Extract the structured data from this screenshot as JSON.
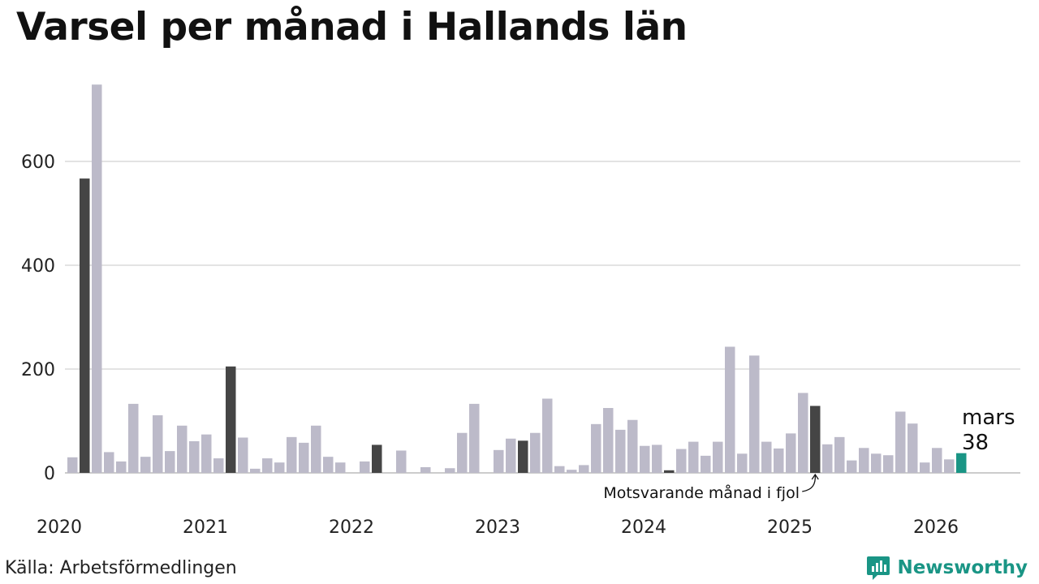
{
  "title": "Varsel per månad i Hallands län",
  "source": "Källa: Arbetsförmedlingen",
  "brand": {
    "name": "Newsworthy",
    "icon": "newsworthy-logo-icon"
  },
  "colors": {
    "default_bar": "#bcbac9",
    "same_month_bar": "#454545",
    "latest_bar": "#1a9585",
    "grid": "#e3e3e3",
    "baseline": "#cccccc",
    "brand": "#1a9585"
  },
  "chart_data": {
    "type": "bar",
    "title": "Varsel per månad i Hallands län",
    "xlabel": "",
    "ylabel": "",
    "ylim": [
      0,
      750
    ],
    "yticks": [
      0,
      200,
      400,
      600
    ],
    "grid": true,
    "x_tick_labels": [
      "2020",
      "2021",
      "2022",
      "2023",
      "2024",
      "2025",
      "2026"
    ],
    "series": [
      {
        "values": [
          30,
          567,
          748,
          40,
          22,
          133,
          31,
          111,
          42,
          91,
          61,
          74,
          28,
          205,
          68,
          8,
          28,
          20,
          69,
          58,
          91,
          31,
          20,
          0,
          22,
          54,
          0,
          43,
          0,
          11,
          0,
          9,
          77,
          133,
          0,
          44,
          66,
          62,
          77,
          143,
          13,
          6,
          15,
          94,
          125,
          83,
          102,
          52,
          54,
          5,
          46,
          60,
          33,
          60,
          243,
          37,
          226,
          60,
          47,
          76,
          154,
          129,
          55,
          69,
          24,
          48,
          37,
          34,
          118,
          95,
          20,
          48,
          26,
          38
        ]
      }
    ],
    "highlight_same_month": [
      1,
      13,
      25,
      37,
      49,
      61
    ],
    "latest_index": 73,
    "latest_label": {
      "month": "mars",
      "value": "38"
    },
    "annotation": {
      "text": "Motsvarande månad i fjol",
      "target_index": 61
    }
  }
}
